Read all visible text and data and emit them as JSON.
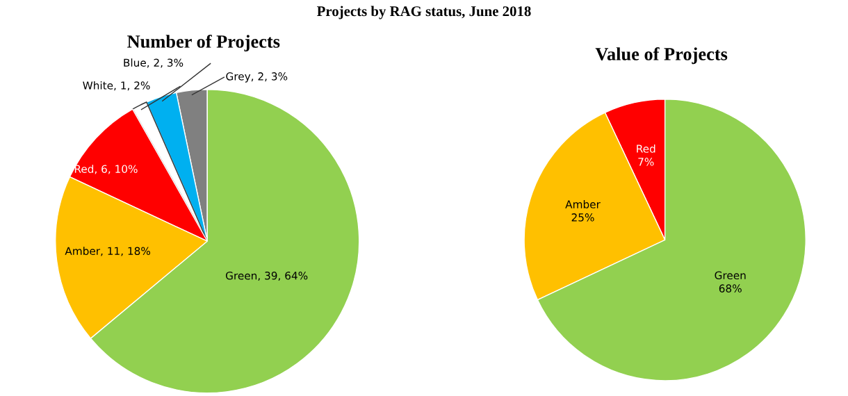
{
  "chart_data": [
    {
      "type": "pie",
      "title": "Number of Projects",
      "categories": [
        "Grey",
        "Blue",
        "White",
        "Red",
        "Amber",
        "Green"
      ],
      "values": [
        2,
        2,
        1,
        6,
        11,
        39
      ],
      "colors": [
        "#808080",
        "#00b0f0",
        "#ffffff",
        "#ff0000",
        "#ffc000",
        "#92d050"
      ],
      "value_labels": [
        ", 2, 3%",
        ", 2, 3%",
        ", 1, 2%",
        ", 6, 10%",
        ", 11, 18%",
        ", 39, 64%"
      ],
      "annotations": [
        "Projects by RAG status, June 2018"
      ]
    },
    {
      "type": "pie",
      "title": "Value of Projects",
      "categories": [
        "Red",
        "Amber",
        "Green"
      ],
      "values": [
        7,
        25,
        68
      ],
      "colors": [
        "#ff0000",
        "#ffc000",
        "#92d050"
      ],
      "value_labels": [
        "7%",
        "25%",
        "68%"
      ]
    }
  ]
}
